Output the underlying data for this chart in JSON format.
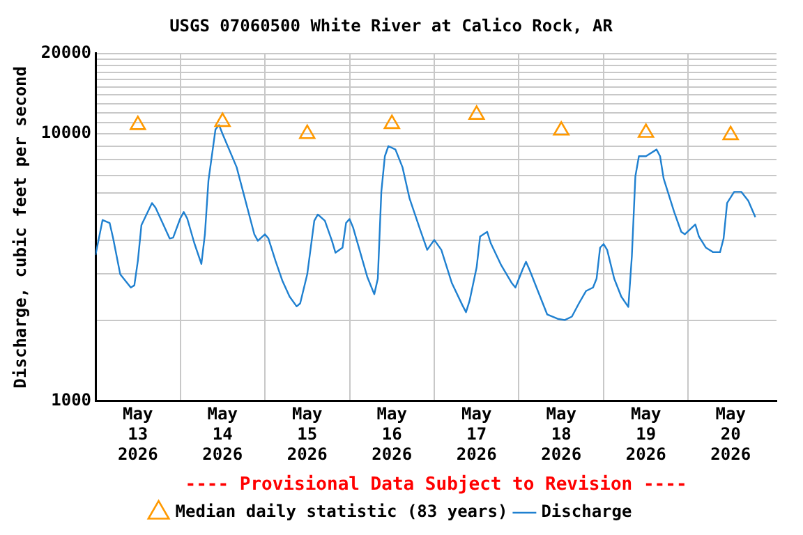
{
  "chart_data": {
    "type": "line",
    "title": "USGS 07060500 White River at Calico Rock, AR",
    "ylabel": "Discharge, cubic feet per second",
    "log": "y",
    "grid": true,
    "legend": "bottom",
    "annotations": [
      "---- Provisional Data Subject to Revision ----"
    ],
    "xlim": [
      "2026-05-13T00:00",
      "2026-05-21T01:00"
    ],
    "xticks": [
      {
        "value": "2026-05-13T12:00",
        "label": "May 13 2026"
      },
      {
        "value": "2026-05-14T00:00",
        "label": null
      },
      {
        "value": "2026-05-14T12:00",
        "label": "May 14 2026"
      },
      {
        "value": "2026-05-15T00:00",
        "label": null
      },
      {
        "value": "2026-05-15T12:00",
        "label": "May 15 2026"
      },
      {
        "value": "2026-05-16T00:00",
        "label": null
      },
      {
        "value": "2026-05-16T12:00",
        "label": "May 16 2026"
      },
      {
        "value": "2026-05-17T00:00",
        "label": null
      },
      {
        "value": "2026-05-17T12:00",
        "label": "May 17 2026"
      },
      {
        "value": "2026-05-18T00:00",
        "label": null
      },
      {
        "value": "2026-05-18T12:00",
        "label": "May 18 2026"
      },
      {
        "value": "2026-05-19T00:00",
        "label": null
      },
      {
        "value": "2026-05-19T12:00",
        "label": "May 19 2026"
      },
      {
        "value": "2026-05-20T00:00",
        "label": null
      },
      {
        "value": "2026-05-20T12:00",
        "label": "May 20 2026"
      }
    ],
    "ylim": [
      1000,
      20000
    ],
    "yticks": [
      1000,
      {
        "value": 2000,
        "label": null
      },
      {
        "value": 3000,
        "label": null
      },
      {
        "value": 4000,
        "label": null
      },
      {
        "value": 5000,
        "label": null
      },
      {
        "value": 6000,
        "label": null
      },
      {
        "value": 7000,
        "label": null
      },
      {
        "value": 8000,
        "label": null
      },
      {
        "value": 9000,
        "label": null
      },
      10000,
      {
        "value": 11000,
        "label": null
      },
      {
        "value": 12000,
        "label": null
      },
      {
        "value": 13000,
        "label": null
      },
      {
        "value": 14000,
        "label": null
      },
      {
        "value": 15000,
        "label": null
      },
      {
        "value": 16000,
        "label": null
      },
      {
        "value": 17000,
        "label": null
      },
      {
        "value": 18000,
        "label": null
      },
      {
        "value": 19000,
        "label": null
      },
      20000
    ],
    "series": [
      {
        "name": "Median daily statistic (83 years)",
        "type": "scatter",
        "marker": "triangle",
        "color": "#ff9900",
        "x": [
          "2026-05-13T12:00",
          "2026-05-14T12:00",
          "2026-05-15T12:00",
          "2026-05-16T12:00",
          "2026-05-17T12:00",
          "2026-05-18T12:00",
          "2026-05-19T12:00",
          "2026-05-20T12:00"
        ],
        "values": [
          10800,
          11100,
          10000,
          10900,
          11800,
          10300,
          10100,
          9900
        ]
      },
      {
        "name": "Discharge",
        "marker": "none",
        "color": "#1f80d0",
        "x": [
          "2026-05-13T00:00",
          "2026-05-13T02:00",
          "2026-05-13T04:00",
          "2026-05-13T05:00",
          "2026-05-13T07:00",
          "2026-05-13T10:00",
          "2026-05-13T11:00",
          "2026-05-13T12:00",
          "2026-05-13T13:00",
          "2026-05-13T16:00",
          "2026-05-13T17:00",
          "2026-05-13T19:00",
          "2026-05-13T21:00",
          "2026-05-13T22:00",
          "2026-05-14T00:00",
          "2026-05-14T01:00",
          "2026-05-14T02:00",
          "2026-05-14T04:00",
          "2026-05-14T06:00",
          "2026-05-14T07:00",
          "2026-05-14T08:00",
          "2026-05-14T10:00",
          "2026-05-14T11:00",
          "2026-05-14T12:00",
          "2026-05-14T16:00",
          "2026-05-14T18:00",
          "2026-05-14T21:00",
          "2026-05-14T22:00",
          "2026-05-15T00:00",
          "2026-05-15T01:00",
          "2026-05-15T03:00",
          "2026-05-15T05:00",
          "2026-05-15T07:00",
          "2026-05-15T09:00",
          "2026-05-15T10:00",
          "2026-05-15T12:00",
          "2026-05-15T14:00",
          "2026-05-15T15:00",
          "2026-05-15T17:00",
          "2026-05-15T19:00",
          "2026-05-15T20:00",
          "2026-05-15T22:00",
          "2026-05-15T23:00",
          "2026-05-16T00:00",
          "2026-05-16T01:00",
          "2026-05-16T03:00",
          "2026-05-16T05:00",
          "2026-05-16T07:00",
          "2026-05-16T08:00",
          "2026-05-16T09:00",
          "2026-05-16T10:00",
          "2026-05-16T11:00",
          "2026-05-16T13:00",
          "2026-05-16T15:00",
          "2026-05-16T17:00",
          "2026-05-16T20:00",
          "2026-05-16T22:00",
          "2026-05-17T00:00",
          "2026-05-17T02:00",
          "2026-05-17T05:00",
          "2026-05-17T08:00",
          "2026-05-17T09:00",
          "2026-05-17T10:00",
          "2026-05-17T12:00",
          "2026-05-17T13:00",
          "2026-05-17T15:00",
          "2026-05-17T16:00",
          "2026-05-17T19:00",
          "2026-05-17T22:00",
          "2026-05-17T23:00",
          "2026-05-18T01:00",
          "2026-05-18T02:00",
          "2026-05-18T03:00",
          "2026-05-18T06:00",
          "2026-05-18T08:00",
          "2026-05-18T11:00",
          "2026-05-18T13:00",
          "2026-05-18T15:00",
          "2026-05-18T17:00",
          "2026-05-18T19:00",
          "2026-05-18T21:00",
          "2026-05-18T22:00",
          "2026-05-18T23:00",
          "2026-05-19T00:00",
          "2026-05-19T01:00",
          "2026-05-19T03:00",
          "2026-05-19T05:00",
          "2026-05-19T07:00",
          "2026-05-19T08:00",
          "2026-05-19T09:00",
          "2026-05-19T10:00",
          "2026-05-19T12:00",
          "2026-05-19T15:00",
          "2026-05-19T16:00",
          "2026-05-19T17:00",
          "2026-05-19T20:00",
          "2026-05-19T22:00",
          "2026-05-19T23:00",
          "2026-05-20T02:00",
          "2026-05-20T03:00",
          "2026-05-20T05:00",
          "2026-05-20T07:00",
          "2026-05-20T09:00",
          "2026-05-20T10:00",
          "2026-05-20T11:00",
          "2026-05-20T13:00",
          "2026-05-20T15:00",
          "2026-05-20T17:00",
          "2026-05-20T19:00"
        ],
        "values": [
          3520,
          4760,
          4640,
          4060,
          2980,
          2660,
          2710,
          3350,
          4550,
          5510,
          5300,
          4640,
          4060,
          4090,
          4820,
          5100,
          4820,
          3900,
          3260,
          4210,
          6680,
          10400,
          10800,
          10000,
          7500,
          5950,
          4210,
          3980,
          4210,
          4060,
          3350,
          2810,
          2460,
          2260,
          2320,
          2980,
          4730,
          4990,
          4730,
          3980,
          3590,
          3750,
          4640,
          4800,
          4460,
          3610,
          2920,
          2510,
          2870,
          6070,
          8250,
          9000,
          8740,
          7500,
          5730,
          4380,
          3680,
          4010,
          3680,
          2760,
          2280,
          2150,
          2370,
          3160,
          4130,
          4300,
          3900,
          3220,
          2760,
          2660,
          3100,
          3320,
          3100,
          2460,
          2110,
          2030,
          2010,
          2070,
          2320,
          2580,
          2660,
          2870,
          3750,
          3870,
          3680,
          2870,
          2460,
          2250,
          3480,
          6940,
          8250,
          8250,
          8740,
          8250,
          6810,
          5100,
          4300,
          4210,
          4580,
          4130,
          3750,
          3610,
          3610,
          4060,
          5510,
          6070,
          6070,
          5620,
          4880
        ]
      }
    ]
  }
}
